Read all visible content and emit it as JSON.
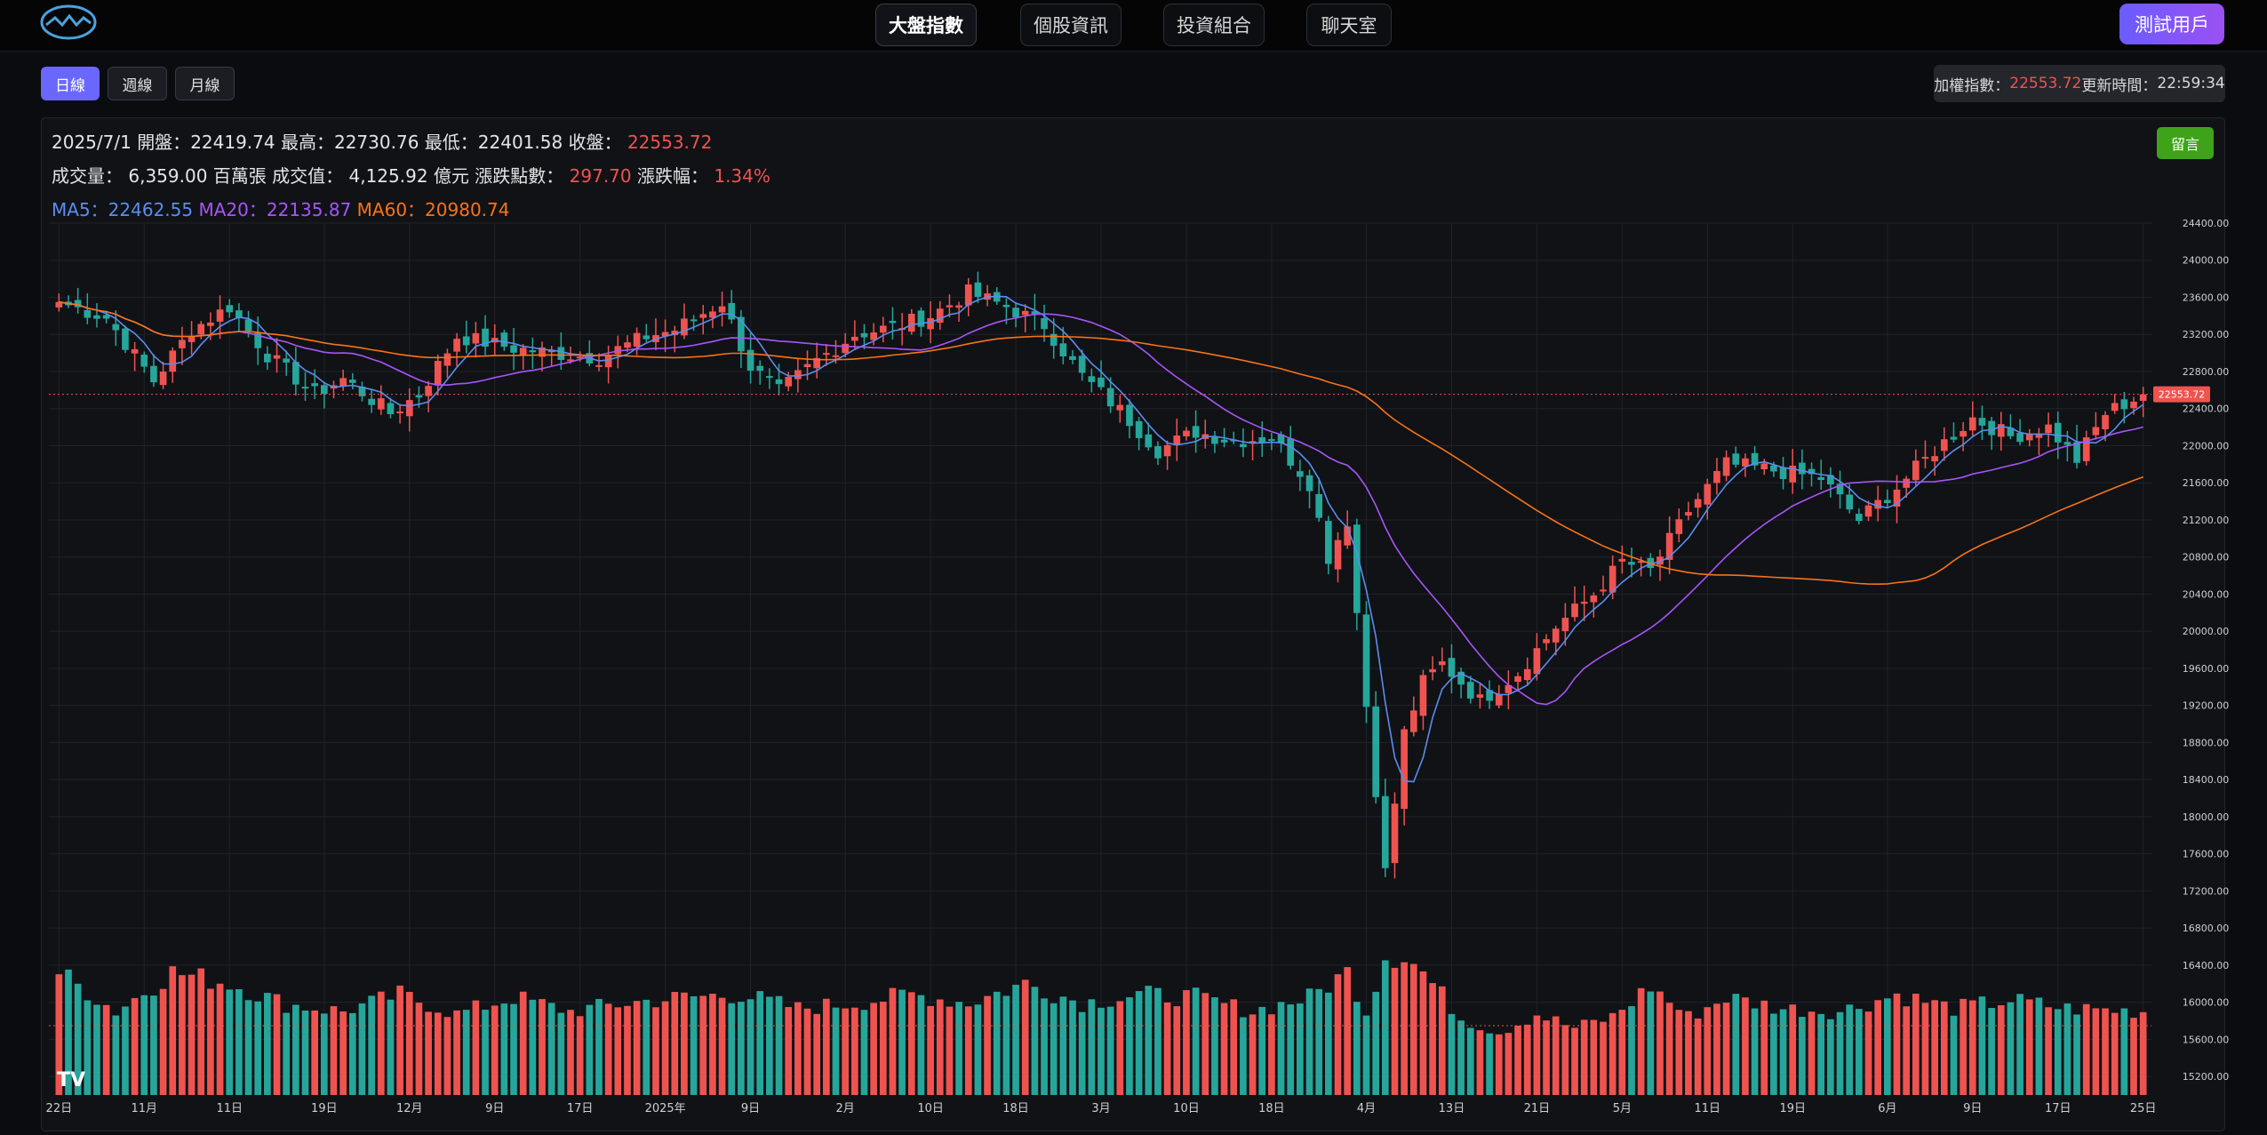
{
  "nav": {
    "items": [
      {
        "label": "大盤指數",
        "active": true
      },
      {
        "label": "個股資訊",
        "active": false
      },
      {
        "label": "投資組合",
        "active": false
      },
      {
        "label": "聊天室",
        "active": false
      }
    ],
    "user_label": "測試用戶"
  },
  "toolbar": {
    "periods": [
      {
        "label": "日線",
        "active": true
      },
      {
        "label": "週線",
        "active": false
      },
      {
        "label": "月線",
        "active": false
      }
    ],
    "index_label": "加權指數：",
    "index_value": "22553.72",
    "update_label": " 更新時間：",
    "update_time": "22:59:34"
  },
  "info": {
    "line1": {
      "date": "2025/7/1",
      "open_label": "開盤：",
      "open": "22419.74",
      "high_label": "最高：",
      "high": "22730.76",
      "low_label": "最低：",
      "low": "22401.58",
      "close_label": "收盤：",
      "close": "22553.72"
    },
    "line2": {
      "vol_label": "成交量：",
      "vol": "6,359.00 百萬張",
      "amt_label": "成交值：",
      "amt": "4,125.92 億元",
      "chg_label": "漲跌點數：",
      "chg": "297.70",
      "pct_label": "漲跌幅：",
      "pct": "1.34%"
    },
    "line3": {
      "ma5_label": "MA5：",
      "ma5": "22462.55",
      "ma20_label": "MA20：",
      "ma20": "22135.87",
      "ma60_label": "MA60：",
      "ma60": "20980.74"
    }
  },
  "message_button": "留言",
  "colors": {
    "up": "#ef5350",
    "down": "#26a69a",
    "ma5": "#5b8def",
    "ma20": "#a855f7",
    "ma60": "#f97316",
    "background": "#101216",
    "grid": "#1f232a",
    "price_line": "#ef5350"
  },
  "chart_data": {
    "type": "candlestick",
    "ylim": [
      15000,
      24400
    ],
    "y_ticks": [
      15200,
      15600,
      16000,
      16400,
      16800,
      17200,
      17600,
      18000,
      18400,
      18800,
      19200,
      19600,
      20000,
      20400,
      20800,
      21200,
      21600,
      22000,
      22400,
      22800,
      23200,
      23600,
      24000,
      24400
    ],
    "current_price": 22553.72,
    "current_price_label": "22553.72",
    "x_ticks": [
      "22日",
      "11月",
      "11日",
      "19日",
      "12月",
      "9日",
      "17日",
      "2025年",
      "9日",
      "2月",
      "10日",
      "18日",
      "3月",
      "10日",
      "18日",
      "4月",
      "13日",
      "21日",
      "5月",
      "11日",
      "19日",
      "6月",
      "9日",
      "17日",
      "25日"
    ],
    "grid": true,
    "watermark": "TV",
    "close_anchors": [
      [
        0,
        23550
      ],
      [
        5,
        23380
      ],
      [
        10,
        22700
      ],
      [
        14,
        23250
      ],
      [
        18,
        23500
      ],
      [
        22,
        22980
      ],
      [
        27,
        22560
      ],
      [
        30,
        22720
      ],
      [
        35,
        22350
      ],
      [
        38,
        22550
      ],
      [
        42,
        23180
      ],
      [
        48,
        23050
      ],
      [
        52,
        23000
      ],
      [
        57,
        22950
      ],
      [
        62,
        23180
      ],
      [
        65,
        23250
      ],
      [
        70,
        23550
      ],
      [
        73,
        22850
      ],
      [
        76,
        22580
      ],
      [
        80,
        22920
      ],
      [
        84,
        23200
      ],
      [
        88,
        23280
      ],
      [
        92,
        23400
      ],
      [
        96,
        23650
      ],
      [
        100,
        23500
      ],
      [
        104,
        23300
      ],
      [
        108,
        22750
      ],
      [
        112,
        22380
      ],
      [
        116,
        21950
      ],
      [
        120,
        22150
      ],
      [
        124,
        22050
      ],
      [
        128,
        22100
      ],
      [
        132,
        21600
      ],
      [
        134,
        20800
      ],
      [
        136,
        21200
      ],
      [
        138,
        19200
      ],
      [
        140,
        17400
      ],
      [
        142,
        18900
      ],
      [
        144,
        19450
      ],
      [
        146,
        19650
      ],
      [
        150,
        19250
      ],
      [
        154,
        19550
      ],
      [
        158,
        20050
      ],
      [
        162,
        20400
      ],
      [
        165,
        20750
      ],
      [
        168,
        20650
      ],
      [
        172,
        21300
      ],
      [
        176,
        21800
      ],
      [
        180,
        21750
      ],
      [
        186,
        21650
      ],
      [
        190,
        21200
      ],
      [
        194,
        21550
      ],
      [
        198,
        21950
      ],
      [
        202,
        22300
      ],
      [
        206,
        22100
      ],
      [
        210,
        22200
      ],
      [
        213,
        21850
      ],
      [
        216,
        22350
      ],
      [
        220,
        22553.72
      ]
    ],
    "volume_anchors": [
      [
        0,
        0.88
      ],
      [
        6,
        0.6
      ],
      [
        12,
        0.88
      ],
      [
        18,
        0.8
      ],
      [
        24,
        0.65
      ],
      [
        30,
        0.6
      ],
      [
        36,
        0.72
      ],
      [
        42,
        0.58
      ],
      [
        48,
        0.7
      ],
      [
        54,
        0.6
      ],
      [
        60,
        0.66
      ],
      [
        66,
        0.7
      ],
      [
        72,
        0.72
      ],
      [
        78,
        0.62
      ],
      [
        84,
        0.66
      ],
      [
        90,
        0.72
      ],
      [
        96,
        0.66
      ],
      [
        102,
        0.8
      ],
      [
        108,
        0.66
      ],
      [
        114,
        0.72
      ],
      [
        120,
        0.7
      ],
      [
        126,
        0.6
      ],
      [
        132,
        0.7
      ],
      [
        136,
        0.88
      ],
      [
        138,
        0.6
      ],
      [
        140,
        1.0
      ],
      [
        142,
        1.0
      ],
      [
        144,
        0.88
      ],
      [
        148,
        0.55
      ],
      [
        152,
        0.45
      ],
      [
        156,
        0.58
      ],
      [
        160,
        0.48
      ],
      [
        164,
        0.56
      ],
      [
        168,
        0.78
      ],
      [
        172,
        0.56
      ],
      [
        176,
        0.7
      ],
      [
        182,
        0.62
      ],
      [
        188,
        0.6
      ],
      [
        194,
        0.72
      ],
      [
        200,
        0.62
      ],
      [
        206,
        0.68
      ],
      [
        212,
        0.62
      ],
      [
        220,
        0.6
      ]
    ]
  }
}
